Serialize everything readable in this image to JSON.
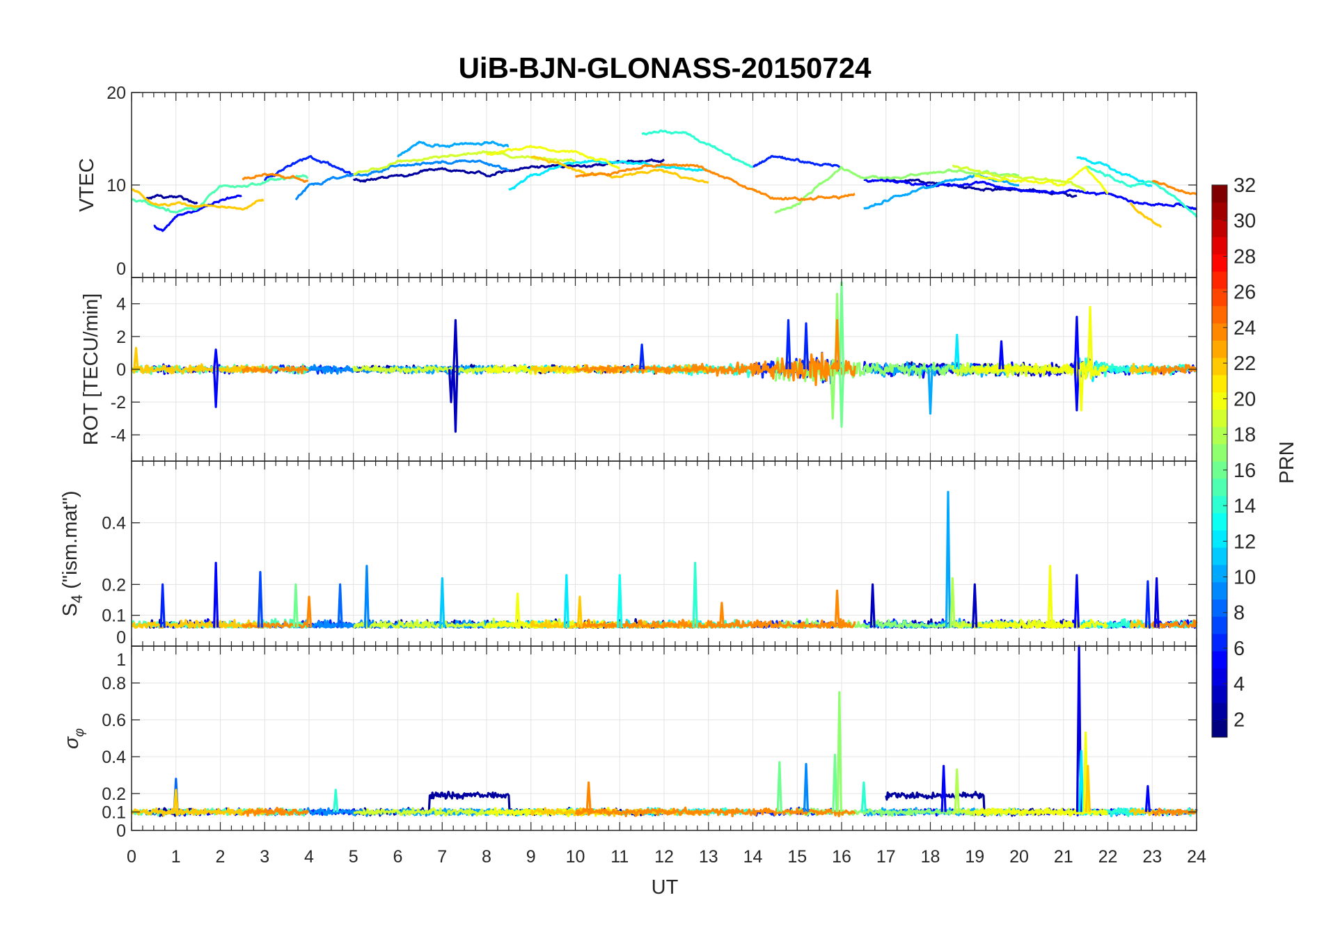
{
  "chart_data": {
    "type": "line",
    "title": "UiB-BJN-GLONASS-20150724",
    "xlabel": "UT",
    "xlim": [
      0,
      24
    ],
    "x_ticks": [
      "0",
      "1",
      "2",
      "3",
      "4",
      "5",
      "6",
      "7",
      "8",
      "9",
      "10",
      "11",
      "12",
      "13",
      "14",
      "15",
      "16",
      "17",
      "18",
      "19",
      "20",
      "21",
      "22",
      "23",
      "24"
    ],
    "grid": true,
    "colorbar": {
      "label": "PRN",
      "range": [
        1,
        32
      ],
      "colormap": "jet",
      "levels": 32,
      "ticks": [
        "2",
        "4",
        "6",
        "8",
        "10",
        "12",
        "14",
        "16",
        "18",
        "20",
        "22",
        "24",
        "26",
        "28",
        "30",
        "32"
      ]
    },
    "panels": [
      {
        "id": "vtec",
        "ylabel": "VTEC",
        "ylim": [
          0,
          20
        ],
        "y_ticks": [
          0,
          10,
          20
        ],
        "y_tick_labels": [
          "0",
          "10",
          "20"
        ]
      },
      {
        "id": "rot",
        "ylabel": "ROT [TECU/min]",
        "ylim": [
          -5.6,
          5.6
        ],
        "y_ticks": [
          -4,
          -2,
          0,
          2,
          4
        ],
        "y_tick_labels": [
          "-4",
          "-2",
          "0",
          "2",
          "4"
        ],
        "noise_envelope": [
          [
            0,
            0.35
          ],
          [
            12,
            0.3
          ],
          [
            14,
            0.6
          ],
          [
            15.5,
            1.2
          ],
          [
            16.5,
            0.6
          ],
          [
            19,
            0.5
          ],
          [
            21.2,
            0.5
          ],
          [
            21.5,
            1.2
          ],
          [
            22,
            0.4
          ],
          [
            24,
            0.4
          ]
        ],
        "spikes": [
          [
            1.9,
            -2.3,
            5
          ],
          [
            1.9,
            1.2,
            5
          ],
          [
            7.3,
            3.0,
            3
          ],
          [
            7.3,
            -3.8,
            3
          ],
          [
            7.2,
            -2.0,
            3
          ],
          [
            14.8,
            3.0,
            6
          ],
          [
            15.2,
            2.8,
            6
          ],
          [
            15.9,
            4.6,
            17
          ],
          [
            16.0,
            5.3,
            16
          ],
          [
            15.8,
            -3.0,
            17
          ],
          [
            16.0,
            -3.5,
            16
          ],
          [
            15.9,
            3.0,
            24
          ],
          [
            21.3,
            3.2,
            5
          ],
          [
            21.3,
            -2.5,
            5
          ],
          [
            21.6,
            3.8,
            20
          ],
          [
            21.4,
            -2.5,
            20
          ],
          [
            18.0,
            -2.7,
            10
          ],
          [
            11.5,
            1.5,
            6
          ],
          [
            0.1,
            1.3,
            22
          ],
          [
            18.6,
            2.1,
            12
          ],
          [
            19.6,
            1.7,
            5
          ]
        ]
      },
      {
        "id": "s4",
        "ylabel_main": "S",
        "ylabel_sub": "4",
        "ylabel_rest": " (\"ism.mat\")",
        "ylim": [
          0,
          0.6
        ],
        "y_ticks": [
          0,
          0.1,
          0.2,
          0.4
        ],
        "y_tick_labels": [
          "0",
          "0.1",
          "0.2",
          "0.4"
        ],
        "baseline": 0.06,
        "noise": 0.015,
        "spikes": [
          [
            0.7,
            0.2,
            6
          ],
          [
            1.9,
            0.27,
            5
          ],
          [
            2.9,
            0.24,
            7
          ],
          [
            3.7,
            0.2,
            16
          ],
          [
            4.7,
            0.2,
            8
          ],
          [
            5.3,
            0.26,
            9
          ],
          [
            7.0,
            0.22,
            11
          ],
          [
            9.8,
            0.23,
            12
          ],
          [
            11.0,
            0.23,
            13
          ],
          [
            12.7,
            0.27,
            14
          ],
          [
            13.3,
            0.14,
            24
          ],
          [
            15.9,
            0.18,
            24
          ],
          [
            16.7,
            0.2,
            3
          ],
          [
            18.4,
            0.5,
            10
          ],
          [
            18.5,
            0.22,
            18
          ],
          [
            19.0,
            0.2,
            3
          ],
          [
            20.7,
            0.26,
            20
          ],
          [
            21.3,
            0.23,
            5
          ],
          [
            22.9,
            0.21,
            6
          ],
          [
            23.1,
            0.22,
            4
          ],
          [
            4.0,
            0.16,
            24
          ],
          [
            8.7,
            0.17,
            20
          ],
          [
            10.1,
            0.16,
            22
          ]
        ]
      },
      {
        "id": "sigma_phi",
        "ylabel_main": "σ",
        "ylabel_sub": "φ",
        "ylim": [
          0,
          1
        ],
        "y_ticks": [
          0,
          0.1,
          0.2,
          0.4,
          0.6,
          0.8,
          1
        ],
        "y_tick_labels": [
          "0",
          "0.1",
          "0.2",
          "0.4",
          "0.6",
          "0.8",
          "1"
        ],
        "baseline": 0.1,
        "noise": 0.025,
        "elevated": [
          [
            6.7,
            8.5,
            0.19,
            2
          ],
          [
            17,
            19.2,
            0.19,
            2
          ]
        ],
        "spikes": [
          [
            1.0,
            0.28,
            8
          ],
          [
            1.0,
            0.22,
            22
          ],
          [
            4.6,
            0.22,
            14
          ],
          [
            10.3,
            0.26,
            24
          ],
          [
            14.6,
            0.37,
            16
          ],
          [
            15.2,
            0.36,
            9
          ],
          [
            15.85,
            0.41,
            16
          ],
          [
            15.95,
            0.75,
            17
          ],
          [
            18.3,
            0.35,
            5
          ],
          [
            18.6,
            0.33,
            18
          ],
          [
            21.35,
            1.0,
            4
          ],
          [
            21.4,
            0.43,
            12
          ],
          [
            21.5,
            0.53,
            20
          ],
          [
            21.55,
            0.35,
            22
          ],
          [
            22.9,
            0.24,
            5
          ],
          [
            16.5,
            0.26,
            14
          ]
        ]
      }
    ],
    "vtec_traces": [
      {
        "prn": 2,
        "segments": [
          [
            [
              0.3,
              8.5
            ],
            [
              1,
              8.8
            ],
            [
              1.5,
              8
            ]
          ],
          [
            [
              5,
              10.5
            ],
            [
              6,
              11
            ],
            [
              7,
              11.8
            ],
            [
              8,
              11.2
            ],
            [
              9,
              12
            ],
            [
              10,
              12
            ],
            [
              11,
              12.5
            ],
            [
              12,
              12.5
            ]
          ],
          [
            [
              17,
              10.5
            ],
            [
              19,
              9.8
            ],
            [
              21,
              9.2
            ],
            [
              21.3,
              8.8
            ]
          ]
        ]
      },
      {
        "prn": 5,
        "segments": [
          [
            [
              0.5,
              5.5
            ],
            [
              0.7,
              5
            ],
            [
              1,
              6.5
            ],
            [
              1.8,
              8
            ],
            [
              2.5,
              9
            ]
          ],
          [
            [
              16.5,
              10.5
            ],
            [
              18,
              10
            ],
            [
              19,
              10.2
            ],
            [
              20,
              9.5
            ],
            [
              22,
              9
            ],
            [
              23,
              8
            ],
            [
              24,
              7.5
            ]
          ]
        ]
      },
      {
        "prn": 6,
        "segments": [
          [
            [
              3,
              10.5
            ],
            [
              3.5,
              12
            ],
            [
              4,
              13.2
            ],
            [
              4.5,
              12
            ],
            [
              5,
              11
            ]
          ],
          [
            [
              14,
              12
            ],
            [
              14.5,
              13
            ],
            [
              15,
              12.5
            ],
            [
              16,
              12
            ]
          ]
        ]
      },
      {
        "prn": 9,
        "segments": [
          [
            [
              3.7,
              8.5
            ],
            [
              4,
              10
            ],
            [
              5,
              11
            ],
            [
              6,
              12
            ],
            [
              7,
              12.5
            ],
            [
              8,
              12.5
            ],
            [
              8.5,
              11.5
            ]
          ]
        ]
      },
      {
        "prn": 10,
        "segments": [
          [
            [
              6,
              13
            ],
            [
              6.5,
              14.5
            ],
            [
              7,
              14.2
            ],
            [
              7.5,
              14.5
            ],
            [
              8,
              14.5
            ],
            [
              8.5,
              14.2
            ]
          ],
          [
            [
              16.5,
              7.5
            ],
            [
              17,
              8.5
            ],
            [
              18,
              10
            ],
            [
              19,
              11
            ],
            [
              20,
              10
            ]
          ]
        ]
      },
      {
        "prn": 12,
        "segments": [
          [
            [
              8.5,
              9.5
            ],
            [
              9,
              11
            ],
            [
              10,
              12.5
            ],
            [
              11,
              12.5
            ],
            [
              12,
              12
            ],
            [
              13,
              11.5
            ]
          ],
          [
            [
              21.3,
              13
            ],
            [
              22,
              12
            ],
            [
              23,
              10
            ]
          ]
        ]
      },
      {
        "prn": 14,
        "segments": [
          [
            [
              11.5,
              15.5
            ],
            [
              12,
              16
            ],
            [
              12.5,
              15.5
            ],
            [
              13,
              14.5
            ],
            [
              13.5,
              13
            ],
            [
              14,
              12
            ]
          ],
          [
            [
              21.5,
              12
            ],
            [
              22,
              11
            ],
            [
              22.5,
              10
            ],
            [
              23,
              10.5
            ],
            [
              24,
              6.5
            ]
          ]
        ]
      },
      {
        "prn": 15,
        "segments": [
          [
            [
              0,
              8.5
            ],
            [
              0.5,
              8
            ],
            [
              1,
              7
            ],
            [
              1.5,
              7.5
            ],
            [
              2,
              10
            ],
            [
              2.5,
              9.5
            ],
            [
              3,
              10.5
            ],
            [
              4,
              11
            ]
          ]
        ]
      },
      {
        "prn": 17,
        "segments": [
          [
            [
              14.5,
              7
            ],
            [
              15,
              8
            ],
            [
              15.5,
              10
            ],
            [
              16,
              12
            ],
            [
              16.5,
              10.5
            ],
            [
              17.5,
              11
            ],
            [
              18.5,
              11.5
            ],
            [
              20,
              11
            ]
          ]
        ]
      },
      {
        "prn": 19,
        "segments": [
          [
            [
              5,
              11
            ],
            [
              6,
              12.5
            ],
            [
              7,
              13
            ],
            [
              8,
              13.5
            ],
            [
              9,
              13
            ],
            [
              10,
              12.5
            ]
          ],
          [
            [
              18.5,
              12
            ],
            [
              19.5,
              11
            ],
            [
              21,
              10.5
            ],
            [
              21.5,
              9.5
            ]
          ]
        ]
      },
      {
        "prn": 20,
        "segments": [
          [
            [
              8,
              13.5
            ],
            [
              9,
              14
            ],
            [
              10,
              13.5
            ],
            [
              11,
              12
            ]
          ],
          [
            [
              19,
              11
            ],
            [
              20,
              10.5
            ],
            [
              21,
              10
            ],
            [
              21.5,
              12
            ],
            [
              22,
              9
            ]
          ]
        ]
      },
      {
        "prn": 22,
        "segments": [
          [
            [
              0,
              9.5
            ],
            [
              0.5,
              8
            ],
            [
              1,
              8
            ],
            [
              2,
              7.5
            ],
            [
              2.5,
              7.5
            ],
            [
              3,
              8.5
            ]
          ],
          [
            [
              9,
              13
            ],
            [
              9.5,
              12.5
            ],
            [
              10,
              11.5
            ],
            [
              11,
              11
            ],
            [
              12,
              11.5
            ],
            [
              13,
              10
            ]
          ],
          [
            [
              22.5,
              8
            ],
            [
              23,
              6
            ],
            [
              23.2,
              5.5
            ]
          ]
        ]
      },
      {
        "prn": 24,
        "segments": [
          [
            [
              2.5,
              10.5
            ],
            [
              3,
              11.2
            ],
            [
              3.5,
              10.8
            ],
            [
              4,
              10.5
            ]
          ],
          [
            [
              10,
              11
            ],
            [
              11,
              11.5
            ],
            [
              12,
              12.5
            ],
            [
              12.8,
              12
            ],
            [
              13.5,
              10.5
            ],
            [
              14.5,
              8.5
            ],
            [
              15.5,
              8.5
            ],
            [
              16.3,
              9
            ]
          ],
          [
            [
              23,
              10.5
            ],
            [
              24,
              9
            ]
          ]
        ]
      }
    ]
  }
}
